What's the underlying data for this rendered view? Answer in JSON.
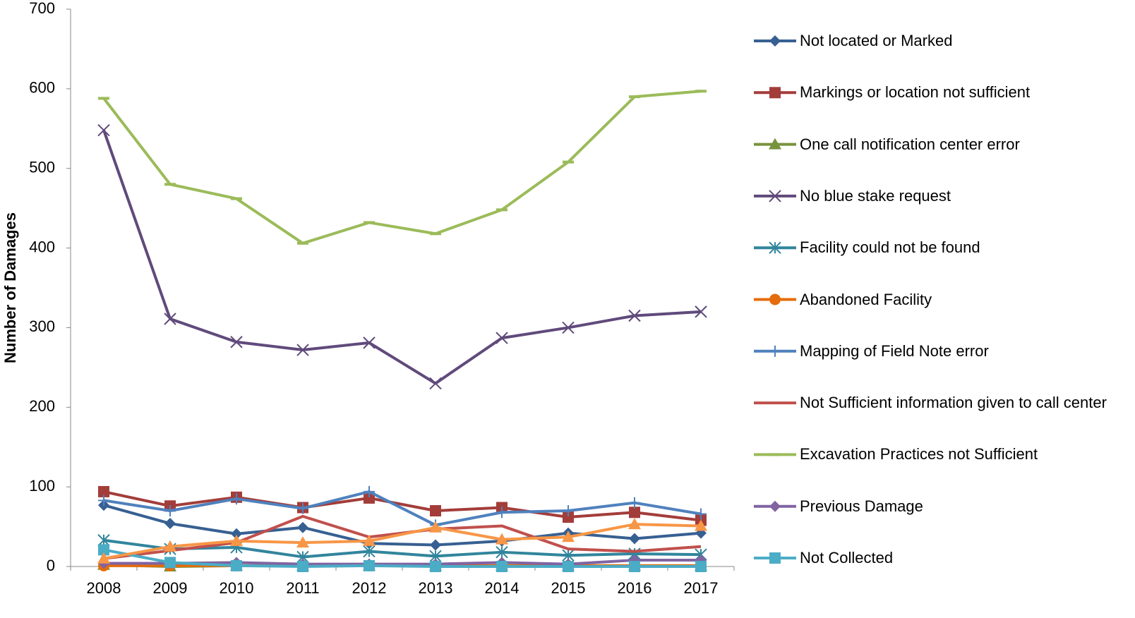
{
  "chart_data": {
    "type": "line",
    "y_label": "Number of Damages",
    "categories": [
      "2008",
      "2009",
      "2010",
      "2011",
      "2012",
      "2013",
      "2014",
      "2015",
      "2016",
      "2017"
    ],
    "ylim": [
      0,
      700
    ],
    "yticks": [
      0,
      100,
      200,
      300,
      400,
      500,
      600,
      700
    ],
    "legend": "right",
    "series": [
      {
        "name": "Not located or Marked",
        "color": "#376092",
        "marker": "diamond",
        "values": [
          77,
          54,
          41,
          49,
          29,
          27,
          32,
          42,
          35,
          42
        ]
      },
      {
        "name": "Markings or location not sufficient",
        "color": "#a33d3a",
        "marker": "square",
        "values": [
          94,
          76,
          87,
          74,
          86,
          70,
          74,
          62,
          68,
          58
        ]
      },
      {
        "name": "One call notification center error",
        "color": "#77933c",
        "marker": "triangle",
        "values": [
          2,
          0,
          1,
          1,
          1,
          1,
          1,
          1,
          1,
          1
        ]
      },
      {
        "name": "No blue stake request",
        "color": "#604a7b",
        "marker": "x",
        "values": [
          548,
          311,
          282,
          272,
          281,
          230,
          287,
          300,
          315,
          320
        ]
      },
      {
        "name": "Facility could not be found",
        "color": "#31859c",
        "marker": "asterisk",
        "values": [
          33,
          22,
          24,
          12,
          19,
          13,
          18,
          14,
          16,
          15
        ]
      },
      {
        "name": "Abandoned Facility",
        "color": "#e46c0a",
        "marker": "circle",
        "values": [
          1,
          1,
          1,
          1,
          1,
          1,
          1,
          1,
          1,
          1
        ]
      },
      {
        "name": "Mapping of Field Note error",
        "color": "#4f81bd",
        "marker": "plus",
        "values": [
          83,
          70,
          85,
          73,
          94,
          52,
          68,
          70,
          80,
          66
        ]
      },
      {
        "name": "Not Sufficient information given to call center",
        "color": "#c0504d",
        "marker": "none",
        "values": [
          10,
          20,
          30,
          63,
          37,
          47,
          51,
          22,
          19,
          25
        ]
      },
      {
        "name": "Excavation Practices not Sufficient",
        "color": "#9bbb59",
        "marker": "dash",
        "values": [
          588,
          480,
          462,
          406,
          432,
          418,
          448,
          508,
          590,
          597
        ]
      },
      {
        "name": "Previous Damage",
        "color": "#8064a2",
        "marker": "diamond",
        "values": [
          4,
          4,
          5,
          3,
          3,
          3,
          5,
          3,
          8,
          8
        ]
      },
      {
        "name": "Not Collected",
        "color": "#4bacc6",
        "marker": "square",
        "values": [
          21,
          5,
          1,
          0,
          1,
          0,
          0,
          0,
          0,
          0
        ]
      },
      {
        "color": "#f79646",
        "marker": "triangle",
        "values": [
          10,
          25,
          32,
          30,
          32,
          49,
          34,
          37,
          53,
          51
        ]
      }
    ]
  }
}
